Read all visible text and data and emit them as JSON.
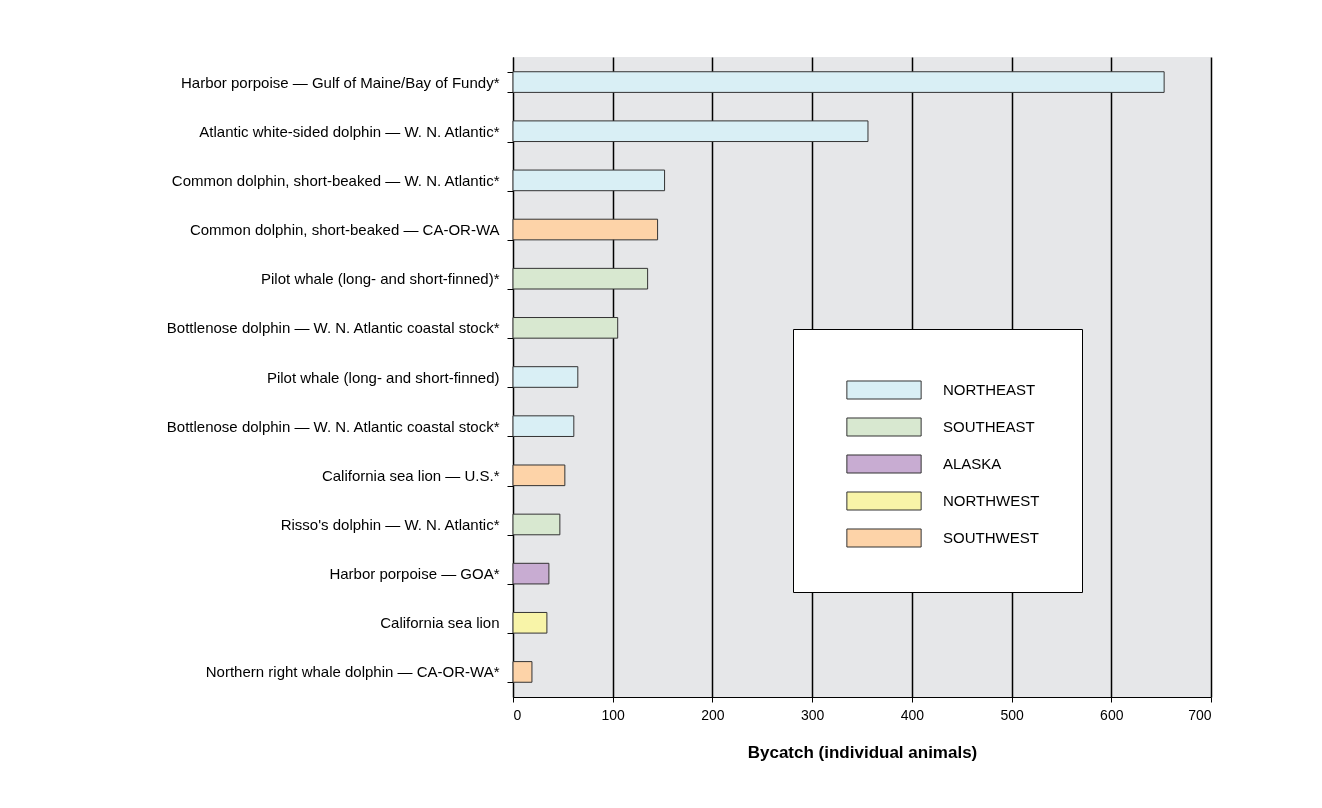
{
  "chart_data": {
    "type": "bar",
    "orientation": "horizontal",
    "xlabel": "Bycatch (individual animals)",
    "categories": [
      "Harbor porpoise — Gulf of Maine/Bay of Fundy*",
      "Atlantic white-sided dolphin — W. N. Atlantic*",
      "Common dolphin, short-beaked — W. N. Atlantic*",
      "Common dolphin, short-beaked — CA-OR-WA",
      "Pilot whale (long- and short-finned)*",
      "Bottlenose dolphin — W. N. Atlantic coastal stock*",
      "Pilot whale (long- and short-finned)",
      "Bottlenose dolphin — W. N. Atlantic coastal stock*",
      "California sea lion — U.S.*",
      "Risso's dolphin — W. N. Atlantic*",
      "Harbor porpoise — GOA*",
      "California sea lion",
      "Northern right whale dolphin — CA-OR-WA*"
    ],
    "series": [
      {
        "name": "NORTHEAST",
        "color": "#d9eff5",
        "values": [
          653,
          356,
          152,
          null,
          null,
          null,
          65,
          61,
          null,
          null,
          null,
          null,
          null
        ]
      },
      {
        "name": "SOUTHEAST",
        "color": "#d8e8d0",
        "values": [
          null,
          null,
          null,
          null,
          135,
          105,
          null,
          null,
          null,
          47,
          null,
          null,
          null
        ]
      },
      {
        "name": "ALASKA",
        "color": "#c8acd2",
        "values": [
          null,
          null,
          null,
          null,
          null,
          null,
          null,
          null,
          null,
          null,
          36,
          null,
          null
        ]
      },
      {
        "name": "NORTHWEST",
        "color": "#f8f4a8",
        "values": [
          null,
          null,
          null,
          null,
          null,
          null,
          null,
          null,
          null,
          null,
          null,
          34,
          null
        ]
      },
      {
        "name": "SOUTHWEST",
        "color": "#fdd3a8",
        "values": [
          null,
          null,
          null,
          145,
          null,
          null,
          null,
          null,
          52,
          null,
          null,
          null,
          19
        ]
      }
    ],
    "xlim": [
      0,
      700
    ],
    "xticks": [
      0,
      100,
      200,
      300,
      400,
      500,
      600,
      700
    ],
    "grid": "x",
    "legend": "bottom right"
  }
}
